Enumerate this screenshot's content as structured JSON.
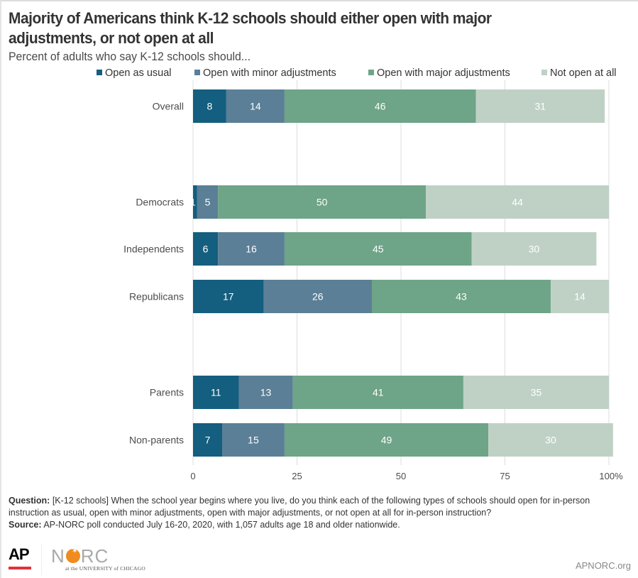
{
  "chart_data": {
    "type": "bar",
    "orientation": "horizontal",
    "stacked": true,
    "title": "Majority of Americans think K-12 schools should either open with major adjustments, or not open at all",
    "subtitle": "Percent of adults who say K-12 schools should...",
    "xlabel": "",
    "ylabel": "",
    "xlim": [
      0,
      100
    ],
    "x_ticks": [
      0,
      25,
      50,
      75,
      100
    ],
    "x_tick_labels": [
      "0",
      "25",
      "50",
      "75",
      "100%"
    ],
    "grid": true,
    "legend_position": "top-right",
    "categories": [
      "Overall",
      "Democrats",
      "Independents",
      "Republicans",
      "Parents",
      "Non-parents"
    ],
    "category_groups": [
      [
        "Overall"
      ],
      [
        "Democrats",
        "Independents",
        "Republicans"
      ],
      [
        "Parents",
        "Non-parents"
      ]
    ],
    "series": [
      {
        "name": "Open as usual",
        "color": "#145e7f",
        "label_color": "#ffffff",
        "values": [
          8,
          1,
          6,
          17,
          11,
          7
        ]
      },
      {
        "name": "Open with minor adjustments",
        "color": "#5b7f96",
        "label_color": "#ffffff",
        "values": [
          14,
          5,
          16,
          26,
          13,
          15
        ]
      },
      {
        "name": "Open with major adjustments",
        "color": "#6ea487",
        "label_color": "#ffffff",
        "values": [
          46,
          50,
          45,
          43,
          41,
          49
        ]
      },
      {
        "name": "Not open at all",
        "color": "#bfd1c5",
        "label_color": "#ffffff",
        "values": [
          31,
          44,
          30,
          14,
          35,
          30
        ]
      }
    ]
  },
  "footnote": {
    "question_label": "Question:",
    "question_text": " [K-12 schools] When the school year begins where you live, do you think each of the following types of schools should open for in-person instruction as usual, open with minor adjustments, open with major adjustments, or not open at all for in-person instruction?",
    "source_label": "Source:",
    "source_text": " AP-NORC poll conducted July 16-20, 2020, with 1,057 adults age 18 and older nationwide."
  },
  "footer": {
    "ap_logo": "AP",
    "norc_left": "N",
    "norc_right": "RC",
    "norc_sub": "at the UNIVERSITY of CHICAGO",
    "site": "APNORC.org"
  }
}
